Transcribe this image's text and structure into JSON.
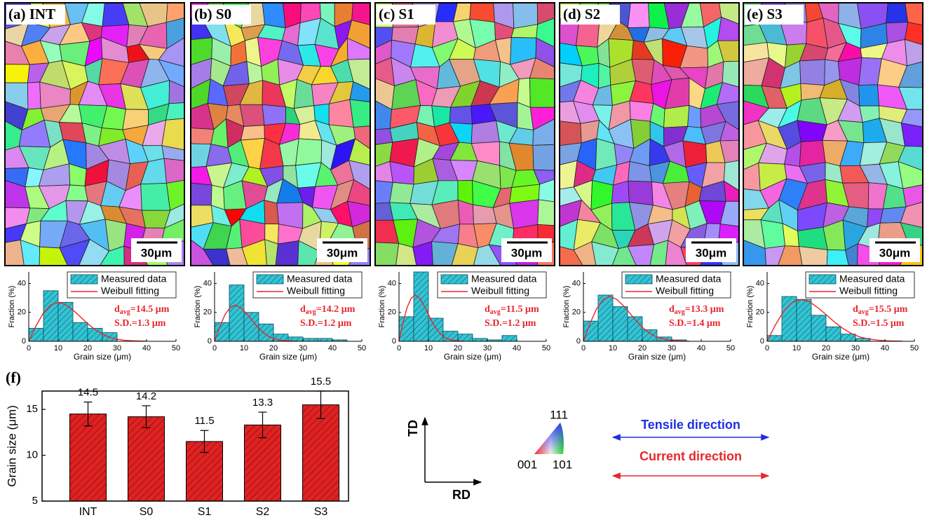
{
  "chart_data": [
    {
      "type": "histogram",
      "panel_label": "(a) INT",
      "scale_bar": "30μm",
      "x_label": "Grain size (μm)",
      "y_label": "Fraction (%)",
      "xlim": [
        0,
        50
      ],
      "xticks": [
        0,
        10,
        20,
        30,
        40,
        50
      ],
      "ylim": [
        0,
        48
      ],
      "yticks": [
        0,
        20,
        40
      ],
      "bins": [
        0,
        5,
        10,
        15,
        20,
        25,
        30
      ],
      "series": [
        {
          "name": "Measured data",
          "color": "#33c3d4",
          "values": [
            9,
            35,
            27,
            13,
            9,
            6
          ]
        },
        {
          "name": "Weibull fitting",
          "color": "#e8262b",
          "type": "line",
          "x": [
            0,
            2.5,
            5,
            7.5,
            10,
            12.5,
            15,
            17.5,
            20,
            22.5,
            25,
            27.5,
            30,
            32.5,
            35,
            37.5,
            40
          ],
          "values": [
            0,
            10.8,
            19.7,
            25.1,
            27,
            25.4,
            21.6,
            17.0,
            12.2,
            8.1,
            4.9,
            2.7,
            1.5,
            0.7,
            0.4,
            0.2,
            0.1
          ]
        }
      ],
      "annotation": {
        "symbol": "d",
        "subscript": "avg",
        "text": "=14.5 μm"
      },
      "sd": "S.D.=1.3 μm"
    },
    {
      "type": "histogram",
      "panel_label": "(b) S0",
      "scale_bar": "30μm",
      "x_label": "Grain size (μm)",
      "y_label": "Fraction (%)",
      "xlim": [
        0,
        50
      ],
      "xticks": [
        0,
        10,
        20,
        30,
        40,
        50
      ],
      "ylim": [
        0,
        48
      ],
      "yticks": [
        0,
        20,
        40
      ],
      "bins": [
        0,
        5,
        10,
        15,
        20,
        25,
        30,
        35,
        40,
        45
      ],
      "series": [
        {
          "name": "Measured data",
          "color": "#33c3d4",
          "values": [
            13,
            39,
            20,
            12,
            5,
            3,
            2,
            2,
            1
          ]
        },
        {
          "name": "Weibull fitting",
          "color": "#e8262b",
          "type": "line",
          "x": [
            0,
            1.75,
            3.5,
            5.25,
            7,
            8.75,
            10.5,
            12.25,
            14,
            15.75,
            17.5,
            19.25,
            21,
            22.75,
            24.5,
            26.25,
            28
          ],
          "values": [
            0,
            10,
            18.3,
            23.3,
            25,
            23.5,
            20,
            15.8,
            11.3,
            7.5,
            4.5,
            2.5,
            1.4,
            0.7,
            0.3,
            0.2,
            0.1
          ]
        }
      ],
      "annotation": {
        "symbol": "d",
        "subscript": "avg",
        "text": "=14.2 μm"
      },
      "sd": "S.D.=1.2 μm"
    },
    {
      "type": "histogram",
      "panel_label": "(c) S1",
      "scale_bar": "30μm",
      "x_label": "Grain size (μm)",
      "y_label": "Fraction (%)",
      "xlim": [
        0,
        50
      ],
      "xticks": [
        0,
        10,
        20,
        30,
        40,
        50
      ],
      "ylim": [
        0,
        48
      ],
      "yticks": [
        0,
        20,
        40
      ],
      "bins": [
        0,
        5,
        10,
        15,
        20,
        25,
        30,
        35,
        40
      ],
      "series": [
        {
          "name": "Measured data",
          "color": "#33c3d4",
          "values": [
            17,
            48,
            16,
            7,
            5,
            2,
            1,
            4
          ]
        },
        {
          "name": "Weibull fitting",
          "color": "#e8262b",
          "type": "line",
          "x": [
            0,
            1.375,
            2.75,
            4.125,
            5.5,
            6.875,
            8.25,
            9.625,
            11,
            12.375,
            13.75,
            15.125,
            16.5,
            17.875,
            19.25,
            20.625,
            22
          ],
          "values": [
            0,
            12.8,
            23.4,
            29.8,
            32,
            30.1,
            25.6,
            20.2,
            14.4,
            9.6,
            5.8,
            3.2,
            1.8,
            0.9,
            0.4,
            0.2,
            0.1
          ]
        }
      ],
      "annotation": {
        "symbol": "d",
        "subscript": "avg",
        "text": "=11.5 μm"
      },
      "sd": "S.D.=1.2 μm"
    },
    {
      "type": "histogram",
      "panel_label": "(d) S2",
      "scale_bar": "30μm",
      "x_label": "Grain size (μm)",
      "y_label": "Fraction (%)",
      "xlim": [
        0,
        50
      ],
      "xticks": [
        0,
        10,
        20,
        30,
        40,
        50
      ],
      "ylim": [
        0,
        48
      ],
      "yticks": [
        0,
        20,
        40
      ],
      "bins": [
        0,
        5,
        10,
        15,
        20,
        25,
        30,
        35
      ],
      "series": [
        {
          "name": "Measured data",
          "color": "#33c3d4",
          "values": [
            14,
            32,
            24,
            17,
            8,
            3,
            1
          ]
        },
        {
          "name": "Weibull fitting",
          "color": "#e8262b",
          "type": "line",
          "x": [
            0,
            2.25,
            4.5,
            6.75,
            9,
            11.25,
            13.5,
            15.75,
            18,
            20.25,
            22.5,
            24.75,
            27,
            29.25,
            31.5,
            33.75,
            36
          ],
          "values": [
            0,
            12.4,
            22.6,
            28.8,
            31,
            29.1,
            24.8,
            19.5,
            14.0,
            9.3,
            5.6,
            3.1,
            1.7,
            0.8,
            0.4,
            0.2,
            0.1
          ]
        }
      ],
      "annotation": {
        "symbol": "d",
        "subscript": "avg",
        "text": "=13.3 μm"
      },
      "sd": "S.D.=1.4 μm"
    },
    {
      "type": "histogram",
      "panel_label": "(e) S3",
      "scale_bar": "30μm",
      "x_label": "Grain size (μm)",
      "y_label": "Fraction (%)",
      "xlim": [
        0,
        50
      ],
      "xticks": [
        0,
        10,
        20,
        30,
        40,
        50
      ],
      "ylim": [
        0,
        48
      ],
      "yticks": [
        0,
        20,
        40
      ],
      "bins": [
        0,
        5,
        10,
        15,
        20,
        25,
        30,
        35
      ],
      "series": [
        {
          "name": "Measured data",
          "color": "#33c3d4",
          "values": [
            4,
            31,
            29,
            18,
            10,
            5,
            2
          ]
        },
        {
          "name": "Weibull fitting",
          "color": "#e8262b",
          "type": "line",
          "x": [
            0,
            2.875,
            5.75,
            8.625,
            11.5,
            14.375,
            17.25,
            20.125,
            23,
            25.875,
            28.75,
            31.625,
            34.5,
            37.375,
            40.25,
            43.125,
            46
          ],
          "values": [
            0,
            11.6,
            21.2,
            27.0,
            29,
            27.3,
            23.2,
            18.3,
            13.1,
            8.7,
            5.2,
            2.9,
            1.6,
            0.8,
            0.4,
            0.2,
            0.1
          ]
        }
      ],
      "annotation": {
        "symbol": "d",
        "subscript": "avg",
        "text": "=15.5 μm"
      },
      "sd": "S.D.=1.5 μm"
    },
    {
      "type": "bar",
      "panel_label": "(f)",
      "y_label": "Grain size (μm)",
      "categories": [
        "INT",
        "S0",
        "S1",
        "S2",
        "S3"
      ],
      "values": [
        14.5,
        14.2,
        11.5,
        13.3,
        15.5
      ],
      "errors": [
        1.3,
        1.2,
        1.2,
        1.4,
        1.5
      ],
      "color": "#e02222",
      "ylim": [
        5,
        17
      ],
      "yticks": [
        5,
        10,
        15
      ]
    }
  ],
  "legend_panel": {
    "td": "TD",
    "rd": "RD",
    "ipf": [
      "111",
      "001",
      "101"
    ],
    "tensile": "Tensile direction",
    "tensile_color": "#1f2fe0",
    "current": "Current direction",
    "current_color": "#e8262b"
  }
}
